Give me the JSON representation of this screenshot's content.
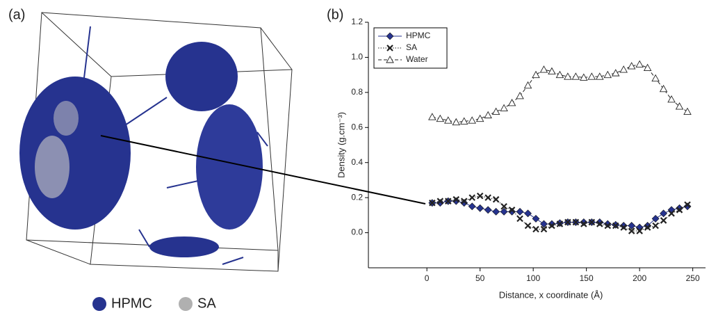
{
  "panels": [
    "(a)",
    "(b)"
  ],
  "left_legend": [
    {
      "label": "HPMC",
      "color": "#26338f"
    },
    {
      "label": "SA",
      "color": "#b0b0b0"
    }
  ],
  "chart_data": {
    "type": "line",
    "xlabel": "Distance, x coordinate (Å)",
    "ylabel": "Density (g.cm⁻³)",
    "x": [
      5,
      12.5,
      20,
      27.5,
      35,
      42.5,
      50,
      57.5,
      65,
      72.5,
      80,
      87.5,
      95,
      102.5,
      110,
      117.5,
      125,
      132.5,
      140,
      147.5,
      155,
      162.5,
      170,
      177.5,
      185,
      192.5,
      200,
      207.5,
      215,
      222.5,
      230,
      237.5,
      245
    ],
    "series": [
      {
        "name": "HPMC",
        "color": "#26338f",
        "marker": "diamond",
        "dash": "solid",
        "values": [
          0.17,
          0.17,
          0.18,
          0.18,
          0.17,
          0.15,
          0.14,
          0.13,
          0.12,
          0.12,
          0.12,
          0.12,
          0.11,
          0.08,
          0.05,
          0.05,
          0.055,
          0.06,
          0.06,
          0.06,
          0.06,
          0.06,
          0.05,
          0.045,
          0.04,
          0.04,
          0.03,
          0.04,
          0.08,
          0.11,
          0.13,
          0.14,
          0.15
        ]
      },
      {
        "name": "SA",
        "color": "#222222",
        "marker": "x",
        "dash": "dotted",
        "values": [
          0.17,
          0.18,
          0.18,
          0.19,
          0.18,
          0.2,
          0.21,
          0.2,
          0.19,
          0.15,
          0.13,
          0.08,
          0.04,
          0.02,
          0.02,
          0.04,
          0.05,
          0.06,
          0.06,
          0.05,
          0.06,
          0.05,
          0.04,
          0.04,
          0.03,
          0.01,
          0.01,
          0.03,
          0.04,
          0.07,
          0.11,
          0.13,
          0.16
        ]
      },
      {
        "name": "Water",
        "color": "#222222",
        "marker": "triangle",
        "dash": "dashed",
        "values": [
          0.66,
          0.65,
          0.64,
          0.63,
          0.635,
          0.64,
          0.65,
          0.67,
          0.69,
          0.71,
          0.74,
          0.78,
          0.84,
          0.9,
          0.93,
          0.92,
          0.9,
          0.89,
          0.89,
          0.885,
          0.89,
          0.89,
          0.9,
          0.91,
          0.93,
          0.95,
          0.96,
          0.94,
          0.88,
          0.82,
          0.76,
          0.72,
          0.69
        ]
      }
    ],
    "xlim": [
      -55,
      262
    ],
    "xticks": [
      0,
      50,
      100,
      150,
      200,
      250
    ],
    "ylim": [
      -0.2,
      1.2
    ],
    "yticks": [
      {
        "value": 0,
        "label": "0.0"
      },
      0.2,
      0.4,
      0.6,
      0.8,
      {
        "value": 1,
        "label": "1.0"
      },
      1.2
    ],
    "legend": "upper-left"
  }
}
